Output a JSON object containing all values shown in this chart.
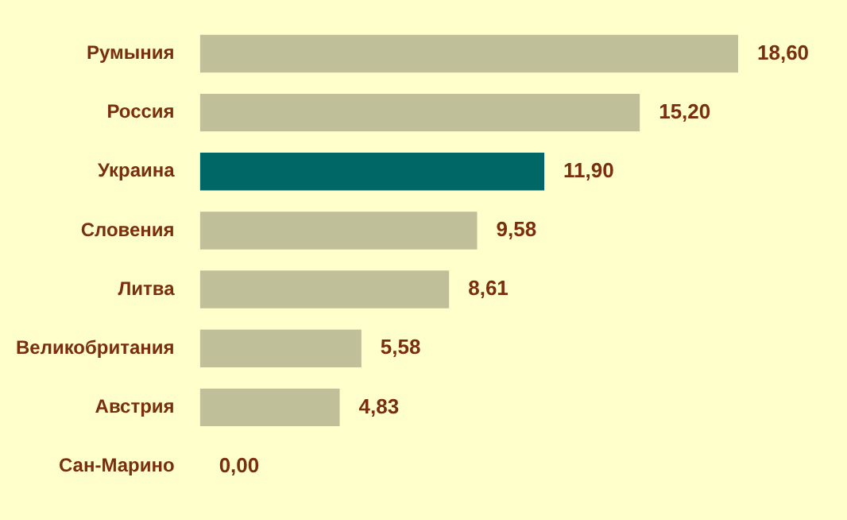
{
  "chart_data": {
    "type": "bar",
    "orientation": "horizontal",
    "categories": [
      "Румыния",
      "Россия",
      "Украина",
      "Словения",
      "Литва",
      "Великобритания",
      "Австрия",
      "Сан-Марино"
    ],
    "values": [
      18.6,
      15.2,
      11.9,
      9.58,
      8.61,
      5.58,
      4.83,
      0
    ],
    "value_labels": [
      "18,60",
      "15,20",
      "11,90",
      "9,58",
      "8,61",
      "5,58",
      "4,83",
      "0,00"
    ],
    "colors": [
      "#bfbf99",
      "#bfbf99",
      "#006666",
      "#bfbf99",
      "#bfbf99",
      "#bfbf99",
      "#bfbf99",
      "#bfbf99"
    ],
    "legend": false
  }
}
